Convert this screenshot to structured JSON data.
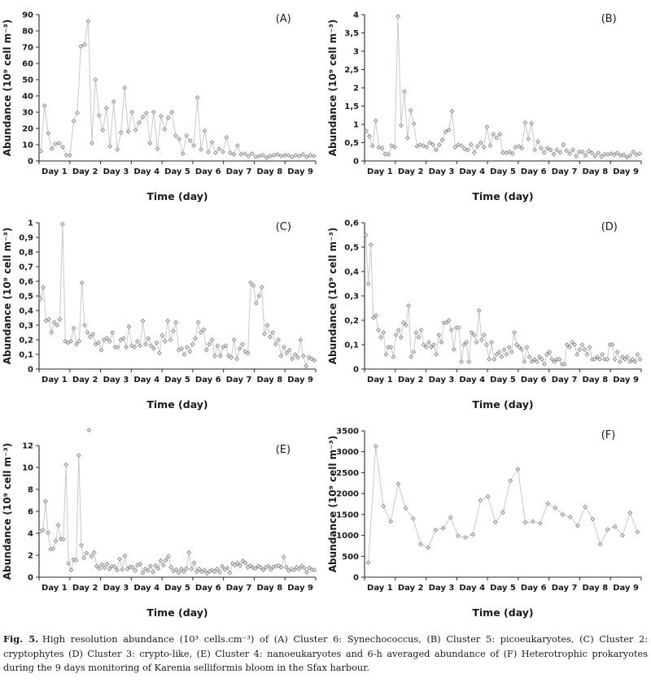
{
  "styles": {
    "background": "#ffffff",
    "axis_color": "#2a2a2a",
    "text_color": "#1a1a1a",
    "line_color": "#c9c9c9",
    "marker_fill": "#efefef",
    "marker_stroke": "#8a8a8a"
  },
  "caption": {
    "label": "Fig. 5.",
    "text": "High resolution abundance (10³ cells.cm⁻³) of (A) Cluster 6: Synechococcus, (B) Cluster 5: picoeukaryotes, (C) Cluster 2: cryptophytes (D) Cluster 3: crypto-like, (E) Cluster 4: nanoeukaryotes and 6-h averaged abundance of (F) Heterotrophic prokaryotes during the 9 days monitoring of Karenia selliformis bloom in the Sfax harbour."
  },
  "chart_data": [
    {
      "type": "line",
      "panel_label": "(A)",
      "series_name": "Cluster 6: Synechococcus",
      "ylabel": "Abundance (10⁹ cell m⁻³)",
      "xlabel": "Time (day)",
      "x_categories": [
        "Day 1",
        "Day 2",
        "Day 3",
        "Day 4",
        "Day 5",
        "Day 6",
        "Day 7",
        "Day 8",
        "Day 9"
      ],
      "ylim": [
        0,
        90
      ],
      "ytick_values": [
        0,
        10,
        20,
        30,
        40,
        50,
        60,
        70,
        80,
        90
      ],
      "ytick_labels": [
        "0",
        "10",
        "20",
        "30",
        "40",
        "50",
        "60",
        "70",
        "80",
        "90"
      ],
      "values": [
        6,
        34,
        17,
        7.5,
        10.5,
        11,
        8.5,
        3.5,
        3.5,
        24.5,
        29.5,
        70.5,
        71.5,
        86,
        11,
        50,
        28,
        19,
        32.5,
        9,
        36.5,
        7,
        17.5,
        45,
        18,
        30,
        19,
        23.5,
        27,
        29.5,
        11,
        30,
        7.5,
        27.5,
        19.5,
        26.5,
        30,
        15.5,
        13.5,
        4.5,
        15.5,
        12.5,
        9.5,
        39,
        7,
        18.5,
        5.5,
        11.5,
        5,
        7.5,
        5.5,
        14.5,
        5,
        4,
        9.5,
        4,
        4.5,
        3,
        4.5,
        2.5,
        3,
        3.5,
        2,
        3,
        3.5,
        4,
        3,
        3.5,
        3.5,
        2.5,
        3.5,
        3,
        4,
        2.5,
        3.5,
        3
      ]
    },
    {
      "type": "line",
      "panel_label": "(B)",
      "series_name": "Cluster 5: picoeukaryotes",
      "ylabel": "Abundance (10⁹ cell m⁻³)",
      "xlabel": "Time (day)",
      "x_categories": [
        "Day 1",
        "Day 2",
        "Day 3",
        "Day 4",
        "Day 5",
        "Day 6",
        "Day 7",
        "Day 8",
        "Day 9"
      ],
      "ylim": [
        0,
        4
      ],
      "ytick_values": [
        0,
        0.5,
        1,
        1.5,
        2,
        2.5,
        3,
        3.5,
        4
      ],
      "ytick_labels": [
        "0",
        "0,5",
        "1",
        "1,5",
        "2",
        "2,5",
        "3",
        "3,5",
        "4"
      ],
      "values": [
        0.82,
        0.67,
        0.41,
        1.1,
        0.37,
        0.35,
        0.19,
        0.18,
        0.42,
        0.38,
        3.95,
        0.97,
        1.9,
        0.63,
        1.38,
        1.02,
        0.4,
        0.44,
        0.42,
        0.38,
        0.5,
        0.45,
        0.3,
        0.44,
        0.58,
        0.8,
        0.85,
        1.36,
        0.38,
        0.44,
        0.42,
        0.33,
        0.3,
        0.45,
        0.23,
        0.4,
        0.5,
        0.38,
        0.93,
        0.42,
        0.73,
        0.63,
        0.73,
        0.23,
        0.22,
        0.25,
        0.2,
        0.38,
        0.4,
        0.35,
        1.05,
        0.6,
        1.03,
        0.3,
        0.53,
        0.35,
        0.23,
        0.35,
        0.3,
        0.18,
        0.3,
        0.23,
        0.45,
        0.28,
        0.2,
        0.3,
        0.13,
        0.25,
        0.25,
        0.15,
        0.27,
        0.22,
        0.13,
        0.22,
        0.12,
        0.18,
        0.18,
        0.2,
        0.17,
        0.22,
        0.15,
        0.17,
        0.1,
        0.15,
        0.25,
        0.17,
        0.2
      ]
    },
    {
      "type": "line",
      "panel_label": "(C)",
      "series_name": "Cluster 2: cryptophytes",
      "ylabel": "Abundance (10⁹ cell m⁻³)",
      "xlabel": "Time (day)",
      "x_categories": [
        "Day 1",
        "Day 2",
        "Day 3",
        "Day 4",
        "Day 5",
        "Day 6",
        "Day 7",
        "Day 8",
        "Day 9"
      ],
      "ylim": [
        0,
        1
      ],
      "ytick_values": [
        0,
        0.1,
        0.2,
        0.3,
        0.4,
        0.5,
        0.6,
        0.7,
        0.8,
        0.9,
        1
      ],
      "ytick_labels": [
        "0",
        "0,1",
        "0,2",
        "0,3",
        "0,4",
        "0,5",
        "0,6",
        "0,7",
        "0,8",
        "0,9",
        "1"
      ],
      "values": [
        0.48,
        0.56,
        0.33,
        0.34,
        0.25,
        0.32,
        0.3,
        0.34,
        0.99,
        0.19,
        0.18,
        0.19,
        0.28,
        0.17,
        0.19,
        0.59,
        0.3,
        0.25,
        0.22,
        0.24,
        0.17,
        0.18,
        0.13,
        0.2,
        0.21,
        0.19,
        0.25,
        0.15,
        0.15,
        0.2,
        0.21,
        0.15,
        0.29,
        0.16,
        0.15,
        0.19,
        0.16,
        0.33,
        0.17,
        0.21,
        0.16,
        0.14,
        0.18,
        0.11,
        0.23,
        0.19,
        0.33,
        0.2,
        0.26,
        0.32,
        0.13,
        0.14,
        0.1,
        0.15,
        0.12,
        0.17,
        0.21,
        0.32,
        0.25,
        0.27,
        0.13,
        0.17,
        0.2,
        0.09,
        0.16,
        0.09,
        0.15,
        0.16,
        0.09,
        0.08,
        0.2,
        0.07,
        0.14,
        0.17,
        0.12,
        0.11,
        0.59,
        0.57,
        0.45,
        0.5,
        0.56,
        0.24,
        0.3,
        0.22,
        0.25,
        0.17,
        0.2,
        0.09,
        0.15,
        0.11,
        0.13,
        0.07,
        0.1,
        0.08,
        0.2,
        0.09,
        0.02,
        0.08,
        0.07,
        0.06
      ]
    },
    {
      "type": "line",
      "panel_label": "(D)",
      "series_name": "Cluster 3: crypto-like",
      "ylabel": "Abundance (10⁹ cell m⁻³)",
      "xlabel": "Time (day)",
      "x_categories": [
        "Day 1",
        "Day 2",
        "Day 3",
        "Day 4",
        "Day 5",
        "Day 6",
        "Day 7",
        "Day 8",
        "Day 9"
      ],
      "ylim": [
        0,
        0.6
      ],
      "ytick_values": [
        0,
        0.1,
        0.2,
        0.3,
        0.4,
        0.5,
        0.6
      ],
      "ytick_labels": [
        "0",
        "0,1",
        "0,2",
        "0,3",
        "0,4",
        "0,5",
        "0,6"
      ],
      "values": [
        0.55,
        0.35,
        0.51,
        0.21,
        0.22,
        0.16,
        0.13,
        0.15,
        0.06,
        0.09,
        0.09,
        0.05,
        0.14,
        0.16,
        0.13,
        0.19,
        0.18,
        0.26,
        0.05,
        0.07,
        0.15,
        0.13,
        0.16,
        0.1,
        0.09,
        0.11,
        0.09,
        0.1,
        0.06,
        0.14,
        0.11,
        0.19,
        0.19,
        0.2,
        0.16,
        0.08,
        0.17,
        0.17,
        0.03,
        0.1,
        0.11,
        0.03,
        0.15,
        0.14,
        0.11,
        0.24,
        0.12,
        0.14,
        0.1,
        0.04,
        0.11,
        0.04,
        0.06,
        0.07,
        0.05,
        0.08,
        0.06,
        0.09,
        0.07,
        0.15,
        0.1,
        0.09,
        0.08,
        0.03,
        0.09,
        0.05,
        0.03,
        0.04,
        0.03,
        0.05,
        0.04,
        0.02,
        0.06,
        0.07,
        0.04,
        0.03,
        0.04,
        0.04,
        0.02,
        0.02,
        0.1,
        0.09,
        0.11,
        0.1,
        0.06,
        0.08,
        0.1,
        0.08,
        0.06,
        0.09,
        0.04,
        0.04,
        0.05,
        0.04,
        0.06,
        0.04,
        0.04,
        0.1,
        0.1,
        0.04,
        0.07,
        0.03,
        0.05,
        0.04,
        0.05,
        0.03,
        0.04,
        0.03,
        0.06,
        0.04
      ]
    },
    {
      "type": "line",
      "panel_label": "(E)",
      "series_name": "Cluster 4: nanoeukaryotes",
      "ylabel": "Abundance (10⁹ cell m⁻³)",
      "xlabel": "Time (day)",
      "x_categories": [
        "Day 1",
        "Day 2",
        "Day 3",
        "Day 4",
        "Day 5",
        "Day 6",
        "Day 7",
        "Day 8",
        "Day 9"
      ],
      "ylim": [
        0,
        12
      ],
      "ytick_values": [
        0,
        2,
        4,
        6,
        8,
        10,
        12
      ],
      "ytick_labels": [
        "0",
        "2",
        "4",
        "6",
        "8",
        "10",
        "12"
      ],
      "top_margin": 36,
      "detached_index": 19,
      "values": [
        4.2,
        4.3,
        6.9,
        4.05,
        2.55,
        2.6,
        3.3,
        4.75,
        3.5,
        3.45,
        10.25,
        1.25,
        0.65,
        1.6,
        1.55,
        11.1,
        2.9,
        1.75,
        2.2,
        13.4,
        1.9,
        2.25,
        1.0,
        0.8,
        1.15,
        0.85,
        1.2,
        0.75,
        1.0,
        0.95,
        0.65,
        1.65,
        0.7,
        1.95,
        0.75,
        0.95,
        0.9,
        0.6,
        1.1,
        1.2,
        0.4,
        0.75,
        0.6,
        1.0,
        0.5,
        1.05,
        0.8,
        1.5,
        1.1,
        1.55,
        1.9,
        0.9,
        0.55,
        0.7,
        0.4,
        0.75,
        0.5,
        0.8,
        2.25,
        0.75,
        1.3,
        0.5,
        0.75,
        0.5,
        0.65,
        0.35,
        0.55,
        0.65,
        0.5,
        0.75,
        0.45,
        1.0,
        0.7,
        0.85,
        0.4,
        1.25,
        1.1,
        1.3,
        1.05,
        1.5,
        1.3,
        0.9,
        1.05,
        0.85,
        0.8,
        1.0,
        0.9,
        0.65,
        0.9,
        1.0,
        0.7,
        0.95,
        1.0,
        1.05,
        0.9,
        1.85,
        0.9,
        0.6,
        0.75,
        0.65,
        0.9,
        0.75,
        1.0,
        0.85,
        0.45,
        0.85,
        0.7,
        0.65
      ]
    },
    {
      "type": "line",
      "panel_label": "(F)",
      "series_name": "Heterotrophic prokaryotes (6-h averaged)",
      "ylabel": "Abundance (10⁹ cell m⁻³)",
      "xlabel": "Time (day)",
      "x_categories": [
        "Day 1",
        "Day 2",
        "Day 3",
        "Day 4",
        "Day 5",
        "Day 6",
        "Day 7",
        "Day 8",
        "Day 9"
      ],
      "ylim": [
        0,
        3500
      ],
      "ytick_values": [
        0,
        500,
        1000,
        1500,
        2000,
        2500,
        3000,
        3500
      ],
      "ytick_labels": [
        "0",
        "500",
        "1000",
        "1500",
        "2000",
        "2500",
        "3000",
        "3500"
      ],
      "values": [
        350,
        3130,
        1700,
        1330,
        2230,
        1650,
        1400,
        790,
        710,
        1130,
        1170,
        1430,
        990,
        950,
        1020,
        1840,
        1930,
        1320,
        1550,
        2310,
        2580,
        1310,
        1330,
        1290,
        1760,
        1660,
        1500,
        1440,
        1230,
        1680,
        1390,
        790,
        1140,
        1210,
        1000,
        1540,
        1080
      ]
    }
  ]
}
